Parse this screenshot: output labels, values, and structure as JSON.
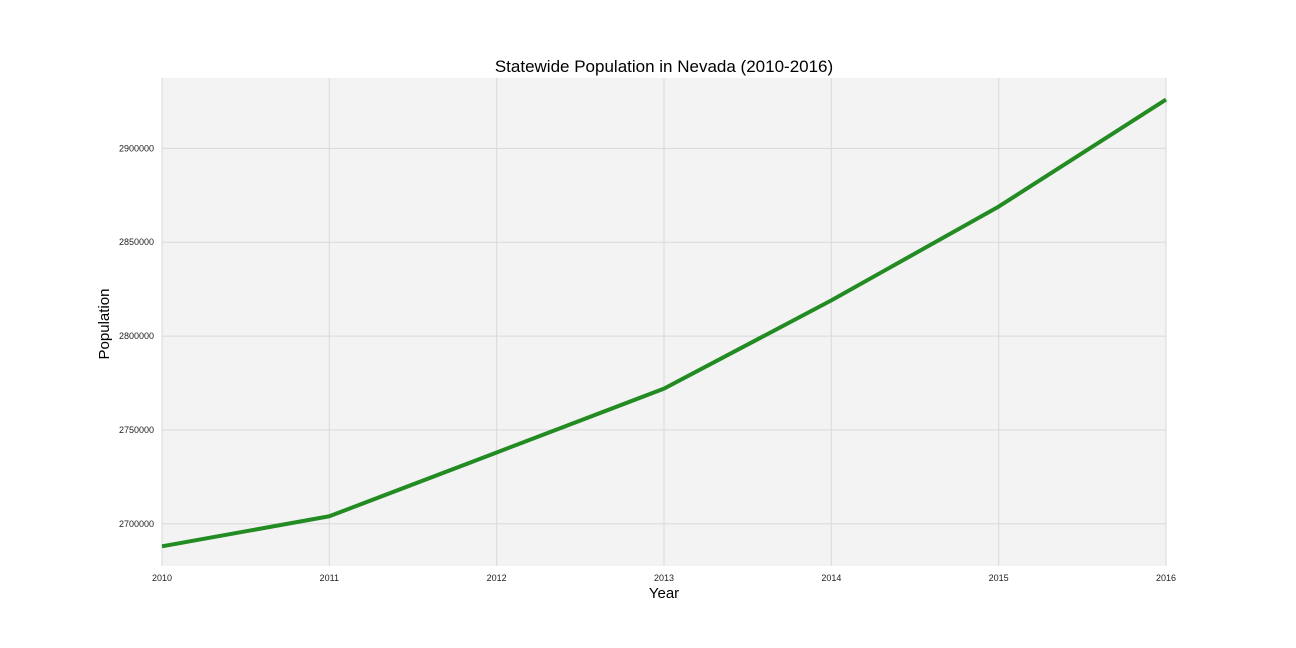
{
  "chart_data": {
    "type": "line",
    "title": "Statewide Population in Nevada (2010-2016)",
    "xlabel": "Year",
    "ylabel": "Population",
    "x": [
      2010,
      2011,
      2012,
      2013,
      2014,
      2015,
      2016
    ],
    "x_tick_labels": [
      "2010",
      "2011",
      "2012",
      "2013",
      "2014",
      "2015",
      "2016"
    ],
    "series": [
      {
        "values": [
          2688000,
          2704000,
          2738000,
          2772000,
          2819000,
          2869000,
          2926000
        ]
      }
    ],
    "y_ticks": [
      2700000,
      2750000,
      2800000,
      2850000,
      2900000
    ],
    "y_tick_labels": [
      "2700000",
      "2750000",
      "2800000",
      "2850000",
      "2900000"
    ],
    "xlim": [
      2010,
      2016
    ],
    "ylim": [
      2677500,
      2937500
    ],
    "grid": true,
    "line_color": "#228b22",
    "background_color": "#f3f3f3"
  }
}
